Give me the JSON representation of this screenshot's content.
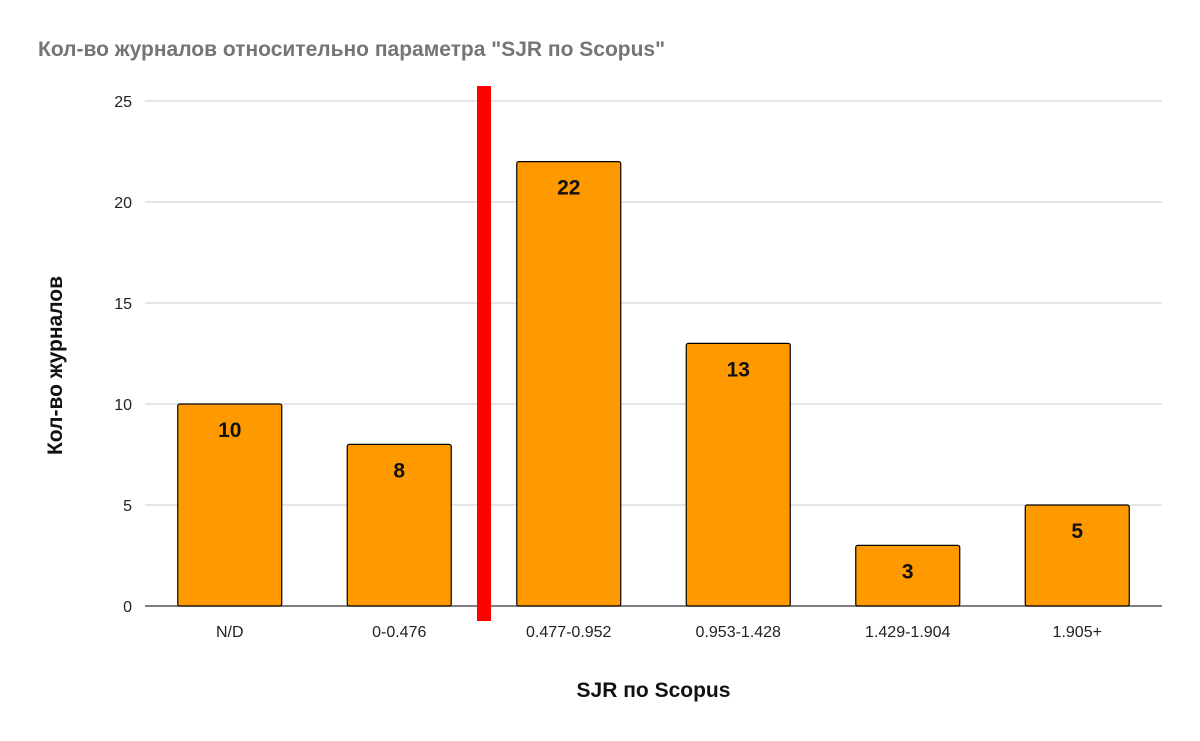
{
  "chart_data": {
    "type": "bar",
    "title": "Кол-во журналов относительно параметра \"SJR по Scopus\"",
    "xlabel": "SJR по Scopus",
    "ylabel": "Кол-во журналов",
    "categories": [
      "N/D",
      "0-0.476",
      "0.477-0.952",
      "0.953-1.428",
      "1.429-1.904",
      "1.905+"
    ],
    "values": [
      10,
      8,
      22,
      13,
      3,
      5
    ],
    "ylim": [
      0,
      25
    ],
    "yticks": [
      0,
      5,
      10,
      15,
      20,
      25
    ],
    "grid": true,
    "legend": "none",
    "colors": {
      "bar": "#ff9900",
      "bar_stroke": "#000000",
      "marker": "#ff0000",
      "grid": "#cccccc"
    },
    "annotation": {
      "type": "vertical-marker",
      "between_categories": [
        1,
        2
      ]
    }
  }
}
